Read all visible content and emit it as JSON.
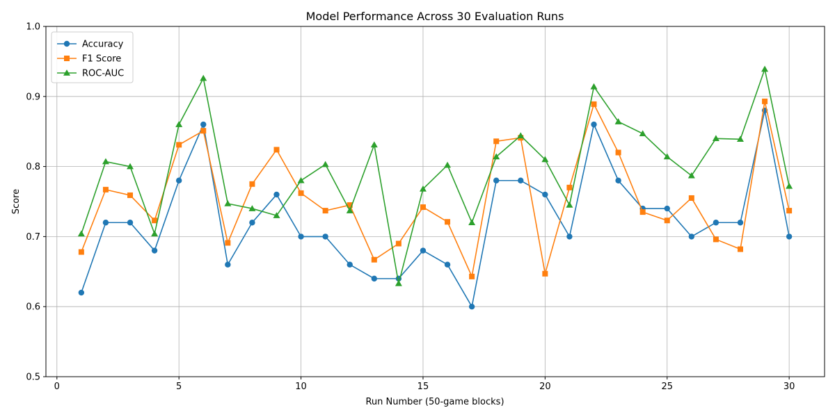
{
  "chart_data": {
    "type": "line",
    "title": "Model Performance Across 30 Evaluation Runs",
    "xlabel": "Run Number (50-game blocks)",
    "ylabel": "Score",
    "xlim": [
      -0.45,
      31.45
    ],
    "ylim": [
      0.5,
      1.0
    ],
    "x_ticks": [
      0,
      5,
      10,
      15,
      20,
      25,
      30
    ],
    "y_ticks": [
      0.5,
      0.6,
      0.7,
      0.8,
      0.9,
      1.0
    ],
    "x_tick_labels": [
      "0",
      "5",
      "10",
      "15",
      "20",
      "25",
      "30"
    ],
    "y_tick_labels": [
      "0.5",
      "0.6",
      "0.7",
      "0.8",
      "0.9",
      "1.0"
    ],
    "grid": true,
    "legend_position": "top-left",
    "x": [
      1,
      2,
      3,
      4,
      5,
      6,
      7,
      8,
      9,
      10,
      11,
      12,
      13,
      14,
      15,
      16,
      17,
      18,
      19,
      20,
      21,
      22,
      23,
      24,
      25,
      26,
      27,
      28,
      29,
      30
    ],
    "series": [
      {
        "name": "Accuracy",
        "color": "#1f77b4",
        "marker": "circle",
        "values": [
          0.62,
          0.72,
          0.72,
          0.68,
          0.78,
          0.86,
          0.66,
          0.72,
          0.76,
          0.7,
          0.7,
          0.66,
          0.64,
          0.64,
          0.68,
          0.66,
          0.6,
          0.78,
          0.78,
          0.76,
          0.7,
          0.86,
          0.78,
          0.74,
          0.74,
          0.7,
          0.72,
          0.72,
          0.88,
          0.7
        ]
      },
      {
        "name": "F1 Score",
        "color": "#ff7f0e",
        "marker": "square",
        "values": [
          0.678,
          0.767,
          0.759,
          0.723,
          0.831,
          0.851,
          0.691,
          0.775,
          0.824,
          0.762,
          0.737,
          0.745,
          0.667,
          0.69,
          0.742,
          0.721,
          0.643,
          0.836,
          0.841,
          0.647,
          0.77,
          0.889,
          0.82,
          0.735,
          0.723,
          0.755,
          0.696,
          0.682,
          0.893,
          0.737
        ]
      },
      {
        "name": "ROC-AUC",
        "color": "#2ca02c",
        "marker": "triangle",
        "values": [
          0.704,
          0.807,
          0.8,
          0.704,
          0.86,
          0.926,
          0.747,
          0.74,
          0.73,
          0.78,
          0.803,
          0.737,
          0.831,
          0.633,
          0.768,
          0.802,
          0.72,
          0.814,
          0.844,
          0.81,
          0.745,
          0.914,
          0.864,
          0.847,
          0.814,
          0.787,
          0.84,
          0.839,
          0.939,
          0.772
        ]
      }
    ]
  }
}
